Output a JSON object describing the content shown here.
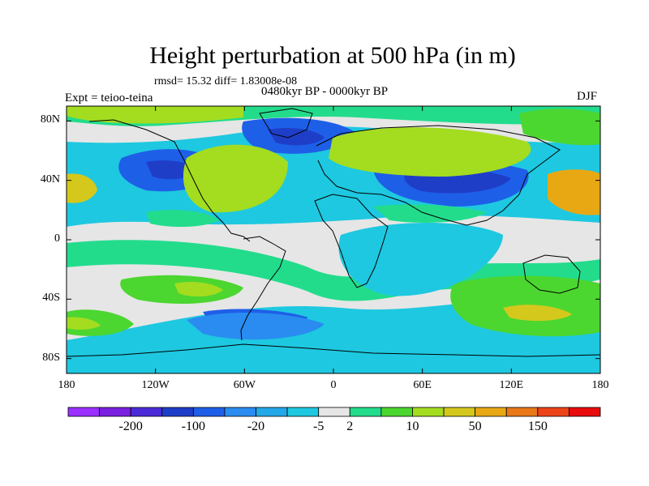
{
  "header": {
    "title": "Height perturbation at 500 hPa (in m)",
    "stats": "rmsd= 15.32 diff= 1.83008e-08",
    "experiment": "Expt = teioo-teina",
    "period": "0480kyr BP - 0000kyr BP",
    "season": "DJF"
  },
  "axes": {
    "lat_ticks": [
      {
        "label": "80N",
        "value": 80
      },
      {
        "label": "40N",
        "value": 40
      },
      {
        "label": "0",
        "value": 0
      },
      {
        "label": "40S",
        "value": -40
      },
      {
        "label": "80S",
        "value": -80
      }
    ],
    "lon_ticks": [
      {
        "label": "180",
        "value": -180
      },
      {
        "label": "120W",
        "value": -120
      },
      {
        "label": "60W",
        "value": -60
      },
      {
        "label": "0",
        "value": 0
      },
      {
        "label": "60E",
        "value": 60
      },
      {
        "label": "120E",
        "value": 120
      },
      {
        "label": "180",
        "value": 180
      }
    ]
  },
  "colorbar": {
    "colors": [
      "#9b30ff",
      "#7a1fe0",
      "#4b2bd8",
      "#1f3ec8",
      "#1e5fe8",
      "#2a8cf0",
      "#22a8e8",
      "#1ec8e0",
      "#e6e6e6",
      "#22dc8c",
      "#4cd630",
      "#a4dc20",
      "#d4c81c",
      "#e8a814",
      "#e87818",
      "#ec4418",
      "#e80c0c"
    ],
    "labels": [
      {
        "text": "-200",
        "boundary": 2
      },
      {
        "text": "-100",
        "boundary": 4
      },
      {
        "text": "-20",
        "boundary": 6
      },
      {
        "text": "-5",
        "boundary": 8
      },
      {
        "text": "2",
        "boundary": 9
      },
      {
        "text": "10",
        "boundary": 11
      },
      {
        "text": "50",
        "boundary": 13
      },
      {
        "text": "150",
        "boundary": 15
      }
    ]
  },
  "map_fill": {
    "neutral": "#e6e6e6",
    "cyan": "#1ec8e0",
    "mid_blue": "#2a8cf0",
    "blue": "#1e5fe8",
    "dark_blue": "#1f3ec8",
    "teal_green": "#22dc8c",
    "green": "#4cd630",
    "yellow_green": "#a4dc20",
    "olive": "#d4c81c",
    "orange": "#e8a814"
  }
}
